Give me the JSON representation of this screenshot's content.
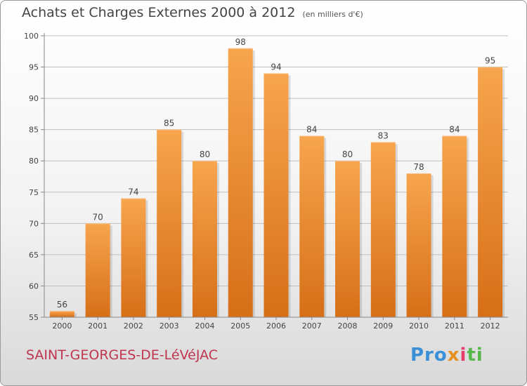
{
  "header": {
    "title": "Achats et Charges Externes 2000 à 2012",
    "unit": "(en milliers d'€)"
  },
  "footer": {
    "commune": "SAINT-GEORGES-DE-LéVéJAC",
    "logo": {
      "p1": "Pro",
      "p2": "x",
      "p3": "i",
      "p4": "ti"
    }
  },
  "colors": {
    "bar_light": "#f7a54e",
    "bar_dark": "#d66f17",
    "axis": "#888888",
    "grid": "#bfbfbf"
  },
  "chart_data": {
    "type": "bar",
    "categories": [
      "2000",
      "2001",
      "2002",
      "2003",
      "2004",
      "2005",
      "2006",
      "2007",
      "2008",
      "2009",
      "2010",
      "2011",
      "2012"
    ],
    "values": [
      56,
      70,
      74,
      85,
      80,
      98,
      94,
      84,
      80,
      83,
      78,
      84,
      95
    ],
    "data_labels": [
      "56",
      "70",
      "74",
      "85",
      "80",
      "98",
      "94",
      "84",
      "80",
      "83",
      "78",
      "84",
      "95"
    ],
    "title": "Achats et Charges Externes 2000 à 2012",
    "ylim": [
      55,
      100
    ],
    "yticks": [
      55,
      60,
      65,
      70,
      75,
      80,
      85,
      90,
      95,
      100
    ],
    "ytick_labels": [
      "55",
      "60",
      "65",
      "70",
      "75",
      "80",
      "85",
      "90",
      "95",
      "100"
    ],
    "grid": true,
    "legend": "none"
  }
}
